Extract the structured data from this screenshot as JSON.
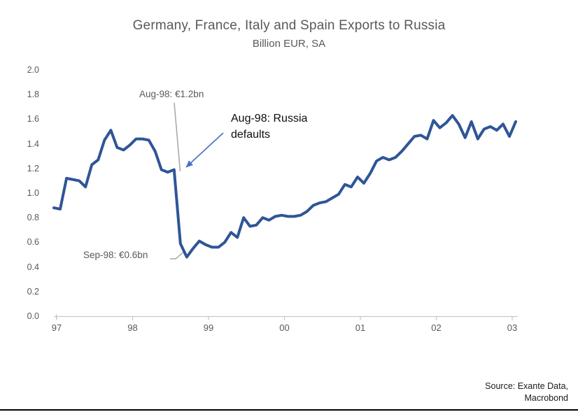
{
  "title": "Germany, France, Italy and Spain Exports to Russia",
  "subtitle": "Billion EUR, SA",
  "source_text": "Source: Exante Data,\nMacrobond",
  "annotations": {
    "aug98_value": "Aug-98: €1.2bn",
    "aug98_event": "Aug-98: Russia defaults",
    "sep98_value": "Sep-98: €0.6bn"
  },
  "colors": {
    "line": "#2F5597",
    "arrow": "#4472C4",
    "gray_text": "#595959",
    "leader": "#A6A6A6",
    "axis": "#C9C9C9"
  },
  "chart_data": {
    "type": "line",
    "title": "Germany, France, Italy and Spain Exports to Russia",
    "subtitle": "Billion EUR, SA",
    "frequency": "monthly",
    "x_start": "Jan-1997",
    "x_end": "Feb-2003",
    "x_tick_labels": [
      "97",
      "98",
      "99",
      "00",
      "01",
      "02",
      "03"
    ],
    "y_tick_labels": [
      "2.0",
      "1.8",
      "1.6",
      "1.4",
      "1.2",
      "1.0",
      "0.8",
      "0.6",
      "0.4",
      "0.2",
      "0.0"
    ],
    "ylim": [
      0.0,
      2.0
    ],
    "grid": false,
    "legend": "none",
    "annotated_points": [
      {
        "label": "Aug-98: €1.2bn",
        "x": "Aug-1998",
        "value": 1.2
      },
      {
        "label": "Sep-98: €0.6bn",
        "x": "Sep-1998",
        "value": 0.6
      },
      {
        "label": "Aug-98: Russia defaults",
        "x": "Aug-1998"
      }
    ],
    "series": [
      {
        "name": "Germany, France, Italy and Spain exports to Russia (Billion EUR, SA)",
        "values": [
          0.88,
          0.87,
          1.12,
          1.11,
          1.1,
          1.05,
          1.23,
          1.27,
          1.43,
          1.51,
          1.37,
          1.35,
          1.39,
          1.44,
          1.44,
          1.43,
          1.34,
          1.19,
          1.17,
          1.19,
          0.59,
          0.48,
          0.55,
          0.61,
          0.58,
          0.56,
          0.56,
          0.6,
          0.68,
          0.64,
          0.8,
          0.73,
          0.74,
          0.8,
          0.78,
          0.81,
          0.82,
          0.81,
          0.81,
          0.82,
          0.85,
          0.9,
          0.92,
          0.93,
          0.96,
          0.99,
          1.07,
          1.05,
          1.13,
          1.08,
          1.16,
          1.26,
          1.29,
          1.27,
          1.29,
          1.34,
          1.4,
          1.46,
          1.47,
          1.44,
          1.59,
          1.53,
          1.57,
          1.63,
          1.56,
          1.45,
          1.58,
          1.44,
          1.52,
          1.54,
          1.51,
          1.56,
          1.46,
          1.58
        ]
      }
    ]
  }
}
